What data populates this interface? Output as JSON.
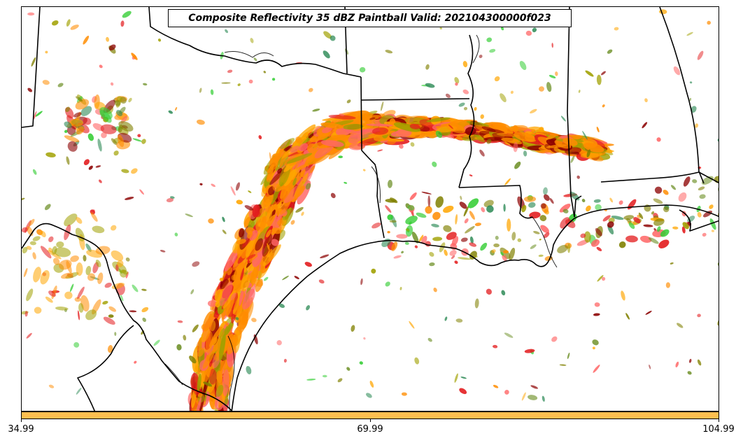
{
  "title": "Composite Reflectivity 35 dBZ Paintball Valid: 202104300000f023",
  "colorbar": {
    "color": "#ffbf50",
    "ticks": [
      "34.99",
      "69.99",
      "104.99"
    ]
  },
  "paintball_colors": [
    "#ff8c00",
    "#e31a1c",
    "#8b0000",
    "#ffa500",
    "#32cd32",
    "#6b8e23",
    "#a0a000",
    "#2e8b57",
    "#ff6666",
    "#808000"
  ],
  "map_features": [
    "state-boundaries",
    "coastline",
    "international-border",
    "rivers"
  ]
}
